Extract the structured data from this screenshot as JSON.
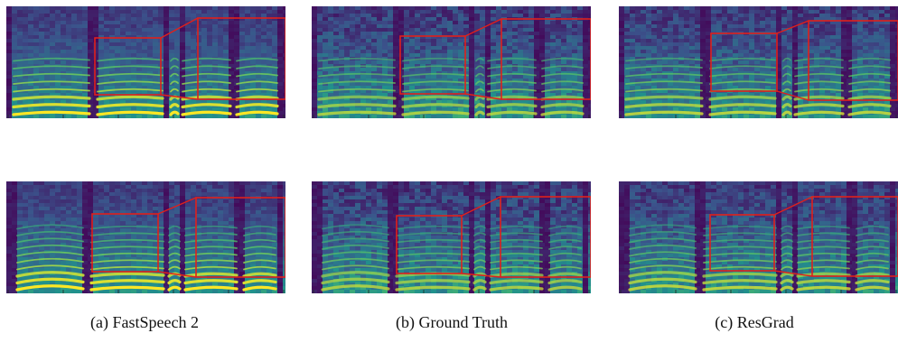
{
  "figure": {
    "captions": [
      "(a) FastSpeech 2",
      "(b) Ground Truth",
      "(c) ResGrad"
    ],
    "colormap": [
      "#440154",
      "#3b528b",
      "#21918c",
      "#5ec962",
      "#fde725"
    ],
    "highlight_color": "#e0201b"
  },
  "columns": [
    {
      "label": "FastSpeech 2",
      "rows": [
        {
          "noise": 0.05,
          "harmonic_sharpness": 1.0
        },
        {
          "noise": 0.05,
          "harmonic_sharpness": 1.0
        }
      ]
    },
    {
      "label": "Ground Truth",
      "rows": [
        {
          "noise": 0.45,
          "harmonic_sharpness": 0.55
        },
        {
          "noise": 0.45,
          "harmonic_sharpness": 0.55
        }
      ]
    },
    {
      "label": "ResGrad",
      "rows": [
        {
          "noise": 0.35,
          "harmonic_sharpness": 0.65
        },
        {
          "noise": 0.35,
          "harmonic_sharpness": 0.65
        }
      ]
    }
  ]
}
